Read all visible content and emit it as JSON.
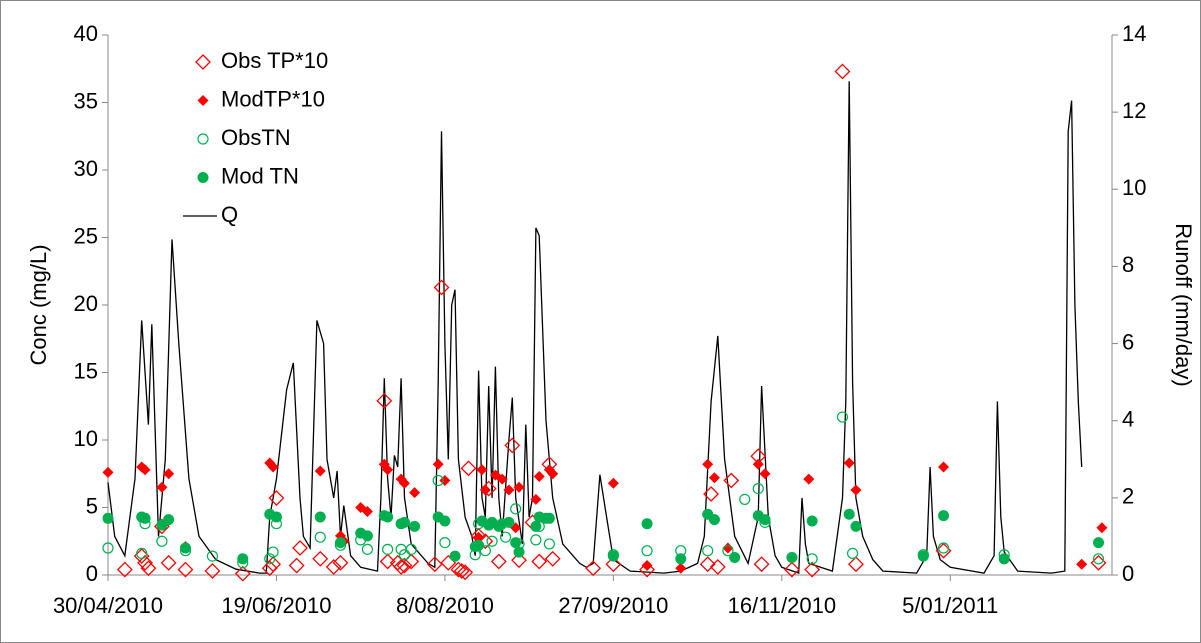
{
  "chart_data": {
    "type": "scatter",
    "y_label": "Conc (mg/L)",
    "y2_label": "Runoff (mm/day)",
    "xlim": [
      "30/04/2010",
      "22/02/2011"
    ],
    "xticks": [
      "30/04/2010",
      "19/06/2010",
      "8/08/2010",
      "27/09/2010",
      "16/11/2010",
      "5/01/2011"
    ],
    "ylim": [
      0,
      40
    ],
    "yticks": [
      0,
      5,
      10,
      15,
      20,
      25,
      30,
      35,
      40
    ],
    "y2lim": [
      0,
      14
    ],
    "y2ticks": [
      0,
      2,
      4,
      6,
      8,
      10,
      12,
      14
    ],
    "legend": "upper-left",
    "series": [
      {
        "name": "Obs TP*10",
        "type": "scatter",
        "marker": "diamond-open",
        "color": "#ff0000",
        "x": [
          "05/05/2010",
          "10/05/2010",
          "11/05/2010",
          "12/05/2010",
          "16/05/2010",
          "18/05/2010",
          "23/05/2010",
          "31/05/2010",
          "09/06/2010",
          "17/06/2010",
          "18/06/2010",
          "19/06/2010",
          "25/06/2010",
          "26/06/2010",
          "02/07/2010",
          "06/07/2010",
          "08/07/2010",
          "21/07/2010",
          "22/07/2010",
          "25/07/2010",
          "26/07/2010",
          "27/07/2010",
          "29/07/2010",
          "05/08/2010",
          "07/08/2010",
          "09/08/2010",
          "12/08/2010",
          "13/08/2010",
          "14/08/2010",
          "15/08/2010",
          "18/08/2010",
          "20/08/2010",
          "21/08/2010",
          "24/08/2010",
          "28/08/2010",
          "30/08/2010",
          "03/09/2010",
          "05/09/2010",
          "08/09/2010",
          "09/09/2010",
          "21/09/2010",
          "27/09/2010",
          "07/10/2010",
          "25/10/2010",
          "26/10/2010",
          "28/10/2010",
          "01/11/2010",
          "09/11/2010",
          "10/11/2010",
          "19/11/2010",
          "25/11/2010",
          "04/12/2010",
          "08/12/2010",
          "03/01/2011",
          "18/02/2011"
        ],
        "values": [
          0.4,
          1.4,
          0.9,
          0.5,
          3.6,
          0.9,
          0.4,
          0.3,
          0.1,
          0.5,
          0.8,
          5.7,
          0.7,
          2.0,
          1.2,
          0.6,
          0.9,
          12.9,
          1.0,
          0.9,
          0.6,
          0.7,
          1.0,
          0.8,
          21.3,
          0.9,
          0.4,
          0.3,
          0.2,
          7.9,
          2.9,
          2.5,
          6.4,
          1.0,
          9.6,
          1.1,
          3.9,
          1.0,
          8.2,
          1.2,
          0.5,
          0.8,
          0.4,
          0.8,
          6.0,
          0.6,
          7.0,
          8.8,
          0.8,
          0.4,
          0.4,
          37.3,
          0.8,
          1.8,
          0.9
        ]
      },
      {
        "name": "ModTP*10",
        "type": "scatter",
        "marker": "diamond",
        "color": "#ff0000",
        "x": [
          "30/04/2010",
          "10/05/2010",
          "11/05/2010",
          "16/05/2010",
          "18/05/2010",
          "23/05/2010",
          "17/06/2010",
          "18/06/2010",
          "02/07/2010",
          "08/07/2010",
          "09/07/2010",
          "14/07/2010",
          "16/07/2010",
          "21/07/2010",
          "22/07/2010",
          "26/07/2010",
          "27/07/2010",
          "30/07/2010",
          "06/08/2010",
          "08/08/2010",
          "18/08/2010",
          "19/08/2010",
          "20/08/2010",
          "23/08/2010",
          "25/08/2010",
          "27/08/2010",
          "29/08/2010",
          "30/08/2010",
          "04/09/2010",
          "05/09/2010",
          "08/09/2010",
          "09/09/2010",
          "27/09/2010",
          "07/10/2010",
          "17/10/2010",
          "25/10/2010",
          "27/10/2010",
          "31/10/2010",
          "09/11/2010",
          "11/11/2010",
          "24/11/2010",
          "06/12/2010",
          "08/12/2010",
          "03/01/2011",
          "13/02/2011",
          "19/02/2011"
        ],
        "values": [
          7.6,
          8.0,
          7.8,
          6.5,
          7.5,
          2.1,
          8.3,
          8.0,
          7.7,
          2.9,
          2.5,
          5.0,
          4.7,
          8.2,
          7.8,
          7.1,
          6.8,
          6.1,
          8.2,
          7.0,
          2.8,
          7.8,
          6.3,
          7.4,
          7.1,
          6.3,
          3.5,
          6.5,
          5.6,
          7.3,
          7.8,
          7.5,
          6.8,
          0.7,
          0.5,
          8.2,
          7.2,
          2.0,
          8.2,
          7.5,
          7.1,
          8.3,
          6.3,
          8.0,
          0.8,
          3.5
        ]
      },
      {
        "name": "ObsTN",
        "type": "scatter",
        "marker": "circle-open",
        "color": "#00b050",
        "x": [
          "30/04/2010",
          "10/05/2010",
          "11/05/2010",
          "16/05/2010",
          "23/05/2010",
          "31/05/2010",
          "09/06/2010",
          "17/06/2010",
          "18/06/2010",
          "19/06/2010",
          "02/07/2010",
          "08/07/2010",
          "14/07/2010",
          "16/07/2010",
          "22/07/2010",
          "26/07/2010",
          "27/07/2010",
          "29/07/2010",
          "06/08/2010",
          "08/08/2010",
          "17/08/2010",
          "18/08/2010",
          "20/08/2010",
          "22/08/2010",
          "26/08/2010",
          "29/08/2010",
          "30/08/2010",
          "04/09/2010",
          "05/09/2010",
          "08/09/2010",
          "27/09/2010",
          "07/10/2010",
          "17/10/2010",
          "25/10/2010",
          "31/10/2010",
          "05/11/2010",
          "09/11/2010",
          "11/11/2010",
          "25/11/2010",
          "04/12/2010",
          "07/12/2010",
          "28/12/2010",
          "03/01/2011",
          "21/01/2011",
          "18/02/2011"
        ],
        "values": [
          2.0,
          1.6,
          3.8,
          2.5,
          1.8,
          1.4,
          0.9,
          1.2,
          1.7,
          3.8,
          2.8,
          2.2,
          2.6,
          1.9,
          1.9,
          1.9,
          1.5,
          1.9,
          7.0,
          2.4,
          1.5,
          3.8,
          1.8,
          2.5,
          2.8,
          4.9,
          2.3,
          2.6,
          3.6,
          2.3,
          1.5,
          1.8,
          1.8,
          1.8,
          1.8,
          5.6,
          6.4,
          3.9,
          1.2,
          11.7,
          1.6,
          1.5,
          2.0,
          1.5,
          1.2
        ]
      },
      {
        "name": "Mod TN",
        "type": "scatter",
        "marker": "circle",
        "color": "#00b050",
        "x": [
          "30/04/2010",
          "10/05/2010",
          "11/05/2010",
          "16/05/2010",
          "18/05/2010",
          "23/05/2010",
          "09/06/2010",
          "17/06/2010",
          "19/06/2010",
          "02/07/2010",
          "08/07/2010",
          "14/07/2010",
          "16/07/2010",
          "21/07/2010",
          "22/07/2010",
          "26/07/2010",
          "27/07/2010",
          "30/07/2010",
          "06/08/2010",
          "08/08/2010",
          "11/08/2010",
          "17/08/2010",
          "18/08/2010",
          "19/08/2010",
          "21/08/2010",
          "22/08/2010",
          "24/08/2010",
          "25/08/2010",
          "27/08/2010",
          "29/08/2010",
          "30/08/2010",
          "04/09/2010",
          "05/09/2010",
          "07/09/2010",
          "08/09/2010",
          "27/09/2010",
          "07/10/2010",
          "17/10/2010",
          "25/10/2010",
          "27/10/2010",
          "02/11/2010",
          "09/11/2010",
          "11/11/2010",
          "19/11/2010",
          "25/11/2010",
          "06/12/2010",
          "08/12/2010",
          "28/12/2010",
          "03/01/2011",
          "21/01/2011",
          "18/02/2011"
        ],
        "values": [
          4.2,
          4.3,
          4.2,
          3.7,
          4.1,
          2.0,
          1.2,
          4.5,
          4.3,
          4.3,
          2.4,
          3.1,
          2.9,
          4.4,
          4.3,
          3.8,
          3.9,
          3.6,
          4.3,
          4.0,
          1.4,
          2.1,
          2.2,
          4.0,
          3.7,
          3.9,
          3.6,
          3.8,
          3.9,
          2.4,
          1.7,
          3.6,
          4.3,
          4.2,
          4.2,
          1.4,
          3.8,
          1.2,
          4.5,
          4.1,
          1.3,
          4.4,
          4.1,
          1.3,
          4.0,
          4.5,
          3.6,
          1.4,
          4.4,
          1.2,
          2.4
        ]
      },
      {
        "name": "Q",
        "type": "line",
        "axis": "y2",
        "color": "#000000",
        "x": [
          "30/04/2010",
          "02/05/2010",
          "05/05/2010",
          "08/05/2010",
          "10/05/2010",
          "12/05/2010",
          "13/05/2010",
          "15/05/2010",
          "17/05/2010",
          "19/05/2010",
          "21/05/2010",
          "24/05/2010",
          "27/05/2010",
          "01/06/2010",
          "07/06/2010",
          "14/06/2010",
          "16/06/2010",
          "17/06/2010",
          "19/06/2010",
          "22/06/2010",
          "24/06/2010",
          "26/06/2010",
          "27/06/2010",
          "29/06/2010",
          "01/07/2010",
          "03/07/2010",
          "04/07/2010",
          "06/07/2010",
          "07/07/2010",
          "08/07/2010",
          "09/07/2010",
          "11/07/2010",
          "14/07/2010",
          "19/07/2010",
          "20/07/2010",
          "21/07/2010",
          "22/07/2010",
          "23/07/2010",
          "24/07/2010",
          "25/07/2010",
          "26/07/2010",
          "27/07/2010",
          "29/07/2010",
          "03/08/2010",
          "05/08/2010",
          "06/08/2010",
          "07/08/2010",
          "08/08/2010",
          "09/08/2010",
          "10/08/2010",
          "11/08/2010",
          "12/08/2010",
          "14/08/2010",
          "16/08/2010",
          "17/08/2010",
          "18/08/2010",
          "19/08/2010",
          "20/08/2010",
          "21/08/2010",
          "22/08/2010",
          "23/08/2010",
          "24/08/2010",
          "25/08/2010",
          "27/08/2010",
          "28/08/2010",
          "29/08/2010",
          "31/08/2010",
          "01/09/2010",
          "02/09/2010",
          "03/09/2010",
          "04/09/2010",
          "05/09/2010",
          "07/09/2010",
          "09/09/2010",
          "12/09/2010",
          "17/09/2010",
          "19/09/2010",
          "21/09/2010",
          "23/09/2010",
          "25/09/2010",
          "27/09/2010",
          "02/10/2010",
          "12/10/2010",
          "17/10/2010",
          "22/10/2010",
          "24/10/2010",
          "26/10/2010",
          "28/10/2010",
          "30/10/2010",
          "02/11/2010",
          "06/11/2010",
          "09/11/2010",
          "10/11/2010",
          "12/11/2010",
          "14/11/2010",
          "16/11/2010",
          "21/11/2010",
          "22/11/2010",
          "23/11/2010",
          "24/11/2010",
          "01/12/2010",
          "04/12/2010",
          "05/12/2010",
          "06/12/2010",
          "07/12/2010",
          "08/12/2010",
          "10/12/2010",
          "13/12/2010",
          "16/12/2010",
          "26/12/2010",
          "29/12/2010",
          "30/12/2010",
          "31/12/2010",
          "02/01/2011",
          "05/01/2011",
          "15/01/2011",
          "18/01/2011",
          "19/01/2011",
          "20/01/2011",
          "21/01/2011",
          "25/01/2011",
          "04/02/2011",
          "08/02/2011",
          "09/02/2011",
          "10/02/2011",
          "11/02/2011",
          "12/02/2011",
          "13/02/2011"
        ],
        "values": [
          2.4,
          1.0,
          0.5,
          2.5,
          6.6,
          3.9,
          6.5,
          1.0,
          3.0,
          8.7,
          6.0,
          2.5,
          1.0,
          0.4,
          0.15,
          0.05,
          0.05,
          1.5,
          2.5,
          4.8,
          5.5,
          2.0,
          1.0,
          0.7,
          6.6,
          6.0,
          3.0,
          2.0,
          2.7,
          1.0,
          1.8,
          0.5,
          0.2,
          0.1,
          2.0,
          5.1,
          2.5,
          1.5,
          3.1,
          2.8,
          5.1,
          2.0,
          0.8,
          0.3,
          0.2,
          5.0,
          11.5,
          6.0,
          3.0,
          7.0,
          7.4,
          3.0,
          1.5,
          1.0,
          0.5,
          5.3,
          2.0,
          1.5,
          4.9,
          2.0,
          5.4,
          2.0,
          1.0,
          3.5,
          4.6,
          2.0,
          0.8,
          3.9,
          1.5,
          2.0,
          9.0,
          8.8,
          4.0,
          2.0,
          0.8,
          0.3,
          0.2,
          0.3,
          2.6,
          1.5,
          0.4,
          0.1,
          0.05,
          0.1,
          0.3,
          1.0,
          4.5,
          6.2,
          3.0,
          1.0,
          0.3,
          1.5,
          4.9,
          1.5,
          0.5,
          0.2,
          0.05,
          2.0,
          0.8,
          0.3,
          0.1,
          2.0,
          4.5,
          12.8,
          5.0,
          2.0,
          1.0,
          0.4,
          0.1,
          0.05,
          0.5,
          2.8,
          1.0,
          0.4,
          0.2,
          0.05,
          0.5,
          4.5,
          1.5,
          0.6,
          0.1,
          0.05,
          0.1,
          11.5,
          12.3,
          7.0,
          4.5,
          2.8
        ]
      }
    ]
  }
}
